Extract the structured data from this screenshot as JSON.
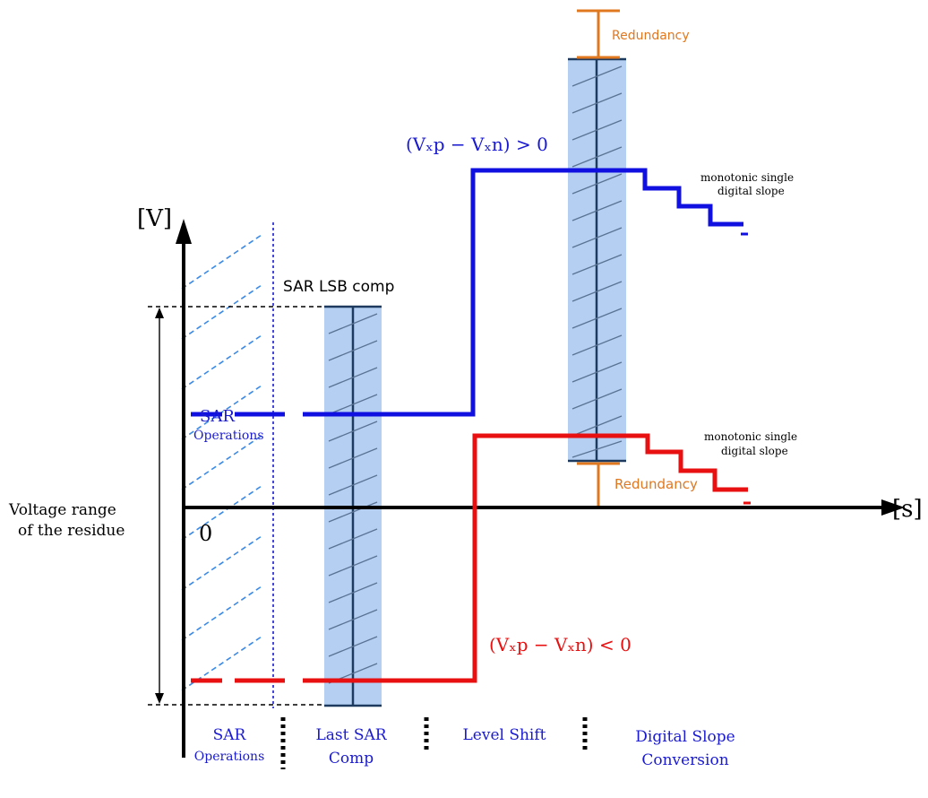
{
  "axes": {
    "y_label": "[V]",
    "x_label": "[s]",
    "origin_label": "0"
  },
  "labels": {
    "sar_lsb_comp": "SAR LSB comp",
    "sar_operations_1": "SAR",
    "sar_operations_2": "Operations",
    "redundancy_top": "Redundancy",
    "redundancy_bottom": "Redundancy",
    "voltage_range_1": "Voltage range",
    "voltage_range_2": "of the residue",
    "positive_condition": "(Vₓp − Vₓn) > 0",
    "negative_condition": "(Vₓp − Vₓn) < 0",
    "slope_top_1": "monotonic single",
    "slope_top_2": "digital slope",
    "slope_bottom_1": "monotonic single",
    "slope_bottom_2": "digital slope"
  },
  "phases": [
    {
      "line1": "SAR",
      "line2": "Operations"
    },
    {
      "line1": "Last SAR",
      "line2": "Comp"
    },
    {
      "line1": "Level Shift",
      "line2": ""
    },
    {
      "line1": "Digital Slope",
      "line2": "Conversion"
    }
  ],
  "colors": {
    "positive": "#1010e0",
    "negative": "#e81010",
    "redundancy": "#e07820",
    "band_fill": "#b4cff2",
    "band_line": "#1f3a5f",
    "hatch": "#3a8ae6",
    "label_blue": "#1a1ad0",
    "axis": "#000000"
  }
}
